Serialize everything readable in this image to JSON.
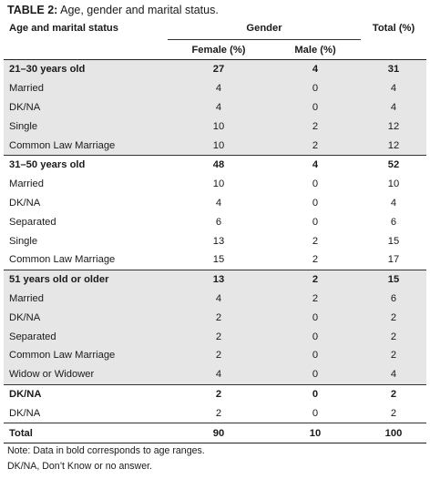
{
  "caption": {
    "label": "TABLE 2:",
    "text": " Age, gender and marital status."
  },
  "header": {
    "row_label": "Age and marital status",
    "gender": "Gender",
    "total": "Total (%)",
    "female": "Female (%)",
    "male": "Male (%)"
  },
  "groups": [
    {
      "label": "21–30 years old",
      "female": "27",
      "male": "4",
      "total": "31",
      "rows": [
        {
          "label": "Married",
          "female": "4",
          "male": "0",
          "total": "4"
        },
        {
          "label": "DK/NA",
          "female": "4",
          "male": "0",
          "total": "4"
        },
        {
          "label": "Single",
          "female": "10",
          "male": "2",
          "total": "12"
        },
        {
          "label": "Common Law Marriage",
          "female": "10",
          "male": "2",
          "total": "12"
        }
      ]
    },
    {
      "label": "31–50 years old",
      "female": "48",
      "male": "4",
      "total": "52",
      "rows": [
        {
          "label": "Married",
          "female": "10",
          "male": "0",
          "total": "10"
        },
        {
          "label": "DK/NA",
          "female": "4",
          "male": "0",
          "total": "4"
        },
        {
          "label": "Separated",
          "female": "6",
          "male": "0",
          "total": "6"
        },
        {
          "label": "Single",
          "female": "13",
          "male": "2",
          "total": "15"
        },
        {
          "label": "Common Law Marriage",
          "female": "15",
          "male": "2",
          "total": "17"
        }
      ]
    },
    {
      "label": "51 years old or older",
      "female": "13",
      "male": "2",
      "total": "15",
      "rows": [
        {
          "label": "Married",
          "female": "4",
          "male": "2",
          "total": "6"
        },
        {
          "label": "DK/NA",
          "female": "2",
          "male": "0",
          "total": "2"
        },
        {
          "label": "Separated",
          "female": "2",
          "male": "0",
          "total": "2"
        },
        {
          "label": "Common Law Marriage",
          "female": "2",
          "male": "0",
          "total": "2"
        },
        {
          "label": "Widow or Widower",
          "female": "4",
          "male": "0",
          "total": "4"
        }
      ]
    },
    {
      "label": "DK/NA",
      "female": "2",
      "male": "0",
      "total": "2",
      "rows": [
        {
          "label": "DK/NA",
          "female": "2",
          "male": "0",
          "total": "2"
        }
      ]
    }
  ],
  "total_row": {
    "label": "Total",
    "female": "90",
    "male": "10",
    "total": "100"
  },
  "notes": [
    "Note: Data in bold corresponds to age ranges.",
    "DK/NA, Don’t Know or no answer."
  ],
  "colors": {
    "shade": "#e6e6e6",
    "rule": "#333333"
  }
}
